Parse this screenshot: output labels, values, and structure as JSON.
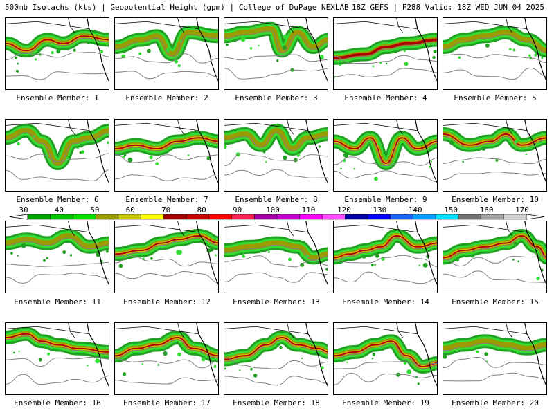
{
  "header": {
    "left_text": "500mb Isotachs (kts) | Geopotential Height (gpm) | College of DuPage NEXLAB",
    "right_text": "18Z GEFS | F288 Valid: 18Z WED JUN 04 2025"
  },
  "member_label_prefix": "Ensemble Member: ",
  "members": [
    {
      "number": "1",
      "jet": [
        [
          0.0,
          0.35
        ],
        [
          0.2,
          0.45
        ],
        [
          0.4,
          0.3
        ],
        [
          0.55,
          0.35
        ],
        [
          0.75,
          0.25
        ],
        [
          1.0,
          0.3
        ]
      ],
      "intensity": 3
    },
    {
      "number": "2",
      "jet": [
        [
          0.0,
          0.4
        ],
        [
          0.25,
          0.3
        ],
        [
          0.4,
          0.25
        ],
        [
          0.55,
          0.5
        ],
        [
          0.7,
          0.2
        ],
        [
          1.0,
          0.25
        ]
      ],
      "intensity": 2
    },
    {
      "number": "3",
      "jet": [
        [
          0.0,
          0.25
        ],
        [
          0.2,
          0.2
        ],
        [
          0.45,
          0.15
        ],
        [
          0.55,
          0.45
        ],
        [
          0.7,
          0.2
        ],
        [
          0.85,
          0.4
        ],
        [
          1.0,
          0.3
        ]
      ],
      "intensity": 2
    },
    {
      "number": "4",
      "jet": [
        [
          0.0,
          0.55
        ],
        [
          0.3,
          0.5
        ],
        [
          0.5,
          0.4
        ],
        [
          0.7,
          0.35
        ],
        [
          1.0,
          0.3
        ]
      ],
      "intensity": 4
    },
    {
      "number": "5",
      "jet": [
        [
          0.0,
          0.4
        ],
        [
          0.2,
          0.3
        ],
        [
          0.4,
          0.25
        ],
        [
          0.6,
          0.2
        ],
        [
          0.8,
          0.3
        ],
        [
          1.0,
          0.45
        ]
      ],
      "intensity": 2
    },
    {
      "number": "6",
      "jet": [
        [
          0.0,
          0.25
        ],
        [
          0.2,
          0.15
        ],
        [
          0.35,
          0.3
        ],
        [
          0.5,
          0.6
        ],
        [
          0.65,
          0.3
        ],
        [
          0.8,
          0.25
        ],
        [
          1.0,
          0.15
        ]
      ],
      "intensity": 2
    },
    {
      "number": "7",
      "jet": [
        [
          0.0,
          0.4
        ],
        [
          0.2,
          0.35
        ],
        [
          0.4,
          0.4
        ],
        [
          0.6,
          0.3
        ],
        [
          0.8,
          0.25
        ],
        [
          1.0,
          0.3
        ]
      ],
      "intensity": 3
    },
    {
      "number": "8",
      "jet": [
        [
          0.0,
          0.25
        ],
        [
          0.2,
          0.2
        ],
        [
          0.35,
          0.35
        ],
        [
          0.5,
          0.15
        ],
        [
          0.65,
          0.4
        ],
        [
          0.8,
          0.25
        ],
        [
          1.0,
          0.2
        ]
      ],
      "intensity": 2
    },
    {
      "number": "9",
      "jet": [
        [
          0.0,
          0.3
        ],
        [
          0.2,
          0.4
        ],
        [
          0.35,
          0.25
        ],
        [
          0.5,
          0.6
        ],
        [
          0.65,
          0.25
        ],
        [
          0.8,
          0.4
        ],
        [
          1.0,
          0.3
        ]
      ],
      "intensity": 3
    },
    {
      "number": "10",
      "jet": [
        [
          0.0,
          0.2
        ],
        [
          0.25,
          0.35
        ],
        [
          0.45,
          0.3
        ],
        [
          0.6,
          0.2
        ],
        [
          0.75,
          0.35
        ],
        [
          1.0,
          0.25
        ]
      ],
      "intensity": 3
    },
    {
      "number": "11",
      "jet": [
        [
          0.0,
          0.3
        ],
        [
          0.2,
          0.25
        ],
        [
          0.4,
          0.3
        ],
        [
          0.6,
          0.2
        ],
        [
          0.8,
          0.35
        ],
        [
          1.0,
          0.3
        ]
      ],
      "intensity": 2
    },
    {
      "number": "12",
      "jet": [
        [
          0.0,
          0.45
        ],
        [
          0.25,
          0.4
        ],
        [
          0.45,
          0.3
        ],
        [
          0.6,
          0.25
        ],
        [
          0.8,
          0.2
        ],
        [
          1.0,
          0.3
        ]
      ],
      "intensity": 3
    },
    {
      "number": "13",
      "jet": [
        [
          0.0,
          0.4
        ],
        [
          0.25,
          0.35
        ],
        [
          0.5,
          0.3
        ],
        [
          0.7,
          0.35
        ],
        [
          0.85,
          0.5
        ],
        [
          1.0,
          0.45
        ]
      ],
      "intensity": 2
    },
    {
      "number": "14",
      "jet": [
        [
          0.0,
          0.5
        ],
        [
          0.15,
          0.45
        ],
        [
          0.3,
          0.4
        ],
        [
          0.45,
          0.35
        ],
        [
          0.6,
          0.2
        ],
        [
          0.8,
          0.35
        ],
        [
          1.0,
          0.3
        ]
      ],
      "intensity": 3
    },
    {
      "number": "15",
      "jet": [
        [
          0.0,
          0.5
        ],
        [
          0.2,
          0.4
        ],
        [
          0.4,
          0.35
        ],
        [
          0.6,
          0.3
        ],
        [
          0.75,
          0.2
        ],
        [
          0.9,
          0.35
        ],
        [
          1.0,
          0.5
        ]
      ],
      "intensity": 3
    },
    {
      "number": "16",
      "jet": [
        [
          0.0,
          0.2
        ],
        [
          0.2,
          0.15
        ],
        [
          0.35,
          0.25
        ],
        [
          0.5,
          0.3
        ],
        [
          0.7,
          0.35
        ],
        [
          1.0,
          0.4
        ]
      ],
      "intensity": 3
    },
    {
      "number": "17",
      "jet": [
        [
          0.0,
          0.45
        ],
        [
          0.2,
          0.35
        ],
        [
          0.4,
          0.3
        ],
        [
          0.6,
          0.2
        ],
        [
          0.75,
          0.35
        ],
        [
          1.0,
          0.45
        ]
      ],
      "intensity": 3
    },
    {
      "number": "18",
      "jet": [
        [
          0.0,
          0.5
        ],
        [
          0.2,
          0.45
        ],
        [
          0.4,
          0.3
        ],
        [
          0.55,
          0.2
        ],
        [
          0.7,
          0.3
        ],
        [
          0.9,
          0.35
        ],
        [
          1.0,
          0.4
        ]
      ],
      "intensity": 3
    },
    {
      "number": "19",
      "jet": [
        [
          0.0,
          0.45
        ],
        [
          0.2,
          0.4
        ],
        [
          0.4,
          0.3
        ],
        [
          0.55,
          0.25
        ],
        [
          0.7,
          0.45
        ],
        [
          0.85,
          0.6
        ],
        [
          1.0,
          0.55
        ]
      ],
      "intensity": 3
    },
    {
      "number": "20",
      "jet": [
        [
          0.0,
          0.35
        ],
        [
          0.2,
          0.3
        ],
        [
          0.4,
          0.25
        ],
        [
          0.6,
          0.3
        ],
        [
          0.8,
          0.35
        ],
        [
          1.0,
          0.3
        ]
      ],
      "intensity": 2
    }
  ],
  "colorbar": {
    "labels": [
      "30",
      "40",
      "50",
      "60",
      "70",
      "80",
      "90",
      "100",
      "110",
      "120",
      "130",
      "140",
      "150",
      "160",
      "170"
    ],
    "colors": [
      "#00a000",
      "#00c000",
      "#00e000",
      "#9b9b00",
      "#c8c800",
      "#ffff00",
      "#a00000",
      "#c80000",
      "#ff0000",
      "#ff2050",
      "#a000a0",
      "#c800c8",
      "#ff00ff",
      "#ff50ff",
      "#0000a0",
      "#0000ff",
      "#2060ff",
      "#00a0ff",
      "#00e0ff",
      "#707070",
      "#a0a0a0",
      "#d0d0d0"
    ],
    "arrow_color": "#ffffff"
  },
  "field_colors": {
    "jet_outer": "#22a022",
    "jet_mid": "#33dd33",
    "jet_core1": "#9b9b00",
    "jet_core2": "#d6c800",
    "jet_core3": "#b00000",
    "height_contour": "#808080",
    "coastline": "#000000"
  }
}
